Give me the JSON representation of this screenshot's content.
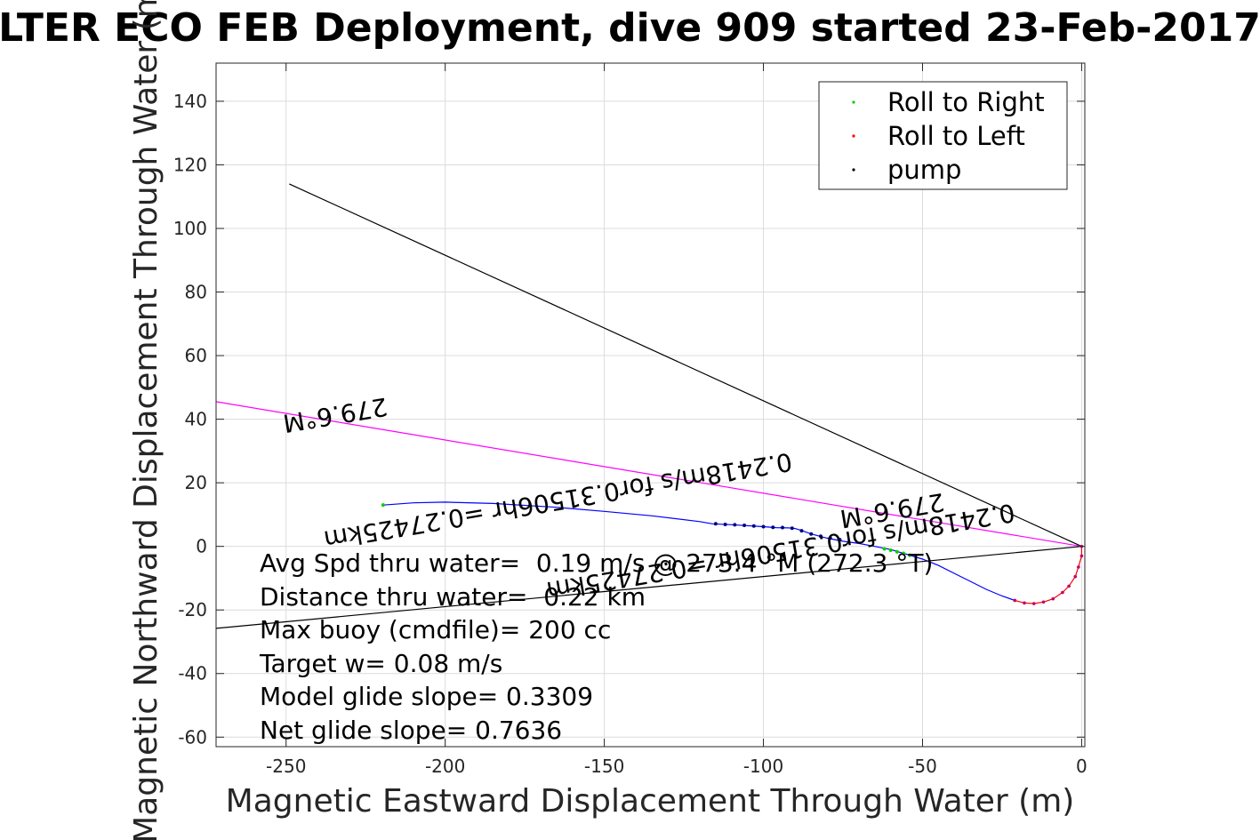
{
  "chart_data": {
    "type": "line",
    "title": "LTER ECO FEB Deployment, dive 909 started 23-Feb-2017",
    "xlabel": "Magnetic Eastward Displacement Through Water (m)",
    "ylabel": "Magnetic Northward Displacement Through Water (m)",
    "xlim": [
      -272,
      1
    ],
    "ylim": [
      -63,
      152
    ],
    "xticks": [
      -250,
      -200,
      -150,
      -100,
      -50,
      0
    ],
    "yticks": [
      140,
      120,
      100,
      80,
      60,
      40,
      20,
      0,
      -20,
      -40,
      -60
    ],
    "grid": true,
    "legend_position": "top-right",
    "legend": [
      {
        "label": "Roll to Right",
        "color": "#00d000"
      },
      {
        "label": "Roll to Left",
        "color": "#ff0000"
      },
      {
        "label": "pump",
        "color": "#000000"
      }
    ],
    "series": [
      {
        "color": "#0000ff",
        "x": [
          -219.5,
          -210,
          -200,
          -185,
          -165,
          -150,
          -135,
          -120,
          -116,
          -110,
          -100,
          -96,
          -92,
          -90,
          -88,
          -85,
          -80,
          -75,
          -70,
          -65,
          -60,
          -55,
          -50,
          -45,
          -40,
          -35,
          -30,
          -25,
          -21
        ],
        "y": [
          13,
          13.7,
          13.9,
          13.5,
          12.3,
          11,
          9.6,
          7.8,
          7.1,
          6.8,
          6.2,
          5.9,
          5.8,
          5.6,
          5.0,
          3.9,
          2.6,
          1.6,
          0.9,
          0,
          -1,
          -2.5,
          -4,
          -6,
          -8.5,
          -11,
          -13.5,
          -15.6,
          -17
        ]
      },
      {
        "color": "#ff0000",
        "x": [
          -21,
          -18,
          -15,
          -12,
          -9,
          -6,
          -4,
          -2,
          -1,
          0,
          0
        ],
        "y": [
          -17,
          -17.8,
          -18,
          -17.5,
          -16.5,
          -14.5,
          -12.5,
          -9.5,
          -6.5,
          -3,
          0
        ]
      },
      {
        "color": "#000000",
        "x": [
          -249,
          0
        ],
        "y": [
          114,
          0
        ]
      },
      {
        "color": "#000000",
        "x": [
          -272,
          0
        ],
        "y": [
          -25.8,
          0
        ]
      },
      {
        "color": "#ff00ff",
        "x": [
          -272,
          0
        ],
        "y": [
          45.5,
          0
        ]
      }
    ],
    "points": [
      {
        "label": "Roll to Right",
        "color": "#00d000",
        "x": [
          -219.5,
          -62,
          -60,
          -58,
          -56,
          -54
        ],
        "y": [
          13,
          -0.8,
          -1.2,
          -1.7,
          -2.2,
          -2.8
        ]
      },
      {
        "label": "pump",
        "color": "#000080",
        "x": [
          -115,
          -112,
          -109,
          -106,
          -103,
          -100,
          -97,
          -94,
          -91,
          -88,
          -85,
          -82,
          -79,
          -76
        ],
        "y": [
          7.1,
          6.9,
          6.8,
          6.6,
          6.4,
          6.2,
          6.0,
          5.9,
          5.7,
          4.9,
          3.9,
          3.2,
          2.6,
          2.1
        ]
      }
    ],
    "annotations": [
      {
        "text": "279.6°M",
        "x": -235,
        "y": 44,
        "rotation": 170.4
      },
      {
        "text": "0.2418m/s for0.31506hr =0.27425km",
        "x": -165,
        "y": 17,
        "rotation": 170.4
      },
      {
        "text": "279.6°M",
        "x": -60,
        "y": 14,
        "rotation": 170.4
      },
      {
        "text": "0.2418m/s for0.31506hr =0.27425km",
        "x": -95,
        "y": 1,
        "rotation": 170.4
      }
    ],
    "stats": [
      "Avg Spd thru water=  0.19 m/s @ 273.4 °M (272.3 °T)",
      "Distance thru water=  0.22 km",
      "Max buoy (cmdfile)= 200 cc",
      "Target w= 0.08 m/s",
      "Model glide slope= 0.3309",
      "Net glide slope= 0.7636"
    ]
  }
}
